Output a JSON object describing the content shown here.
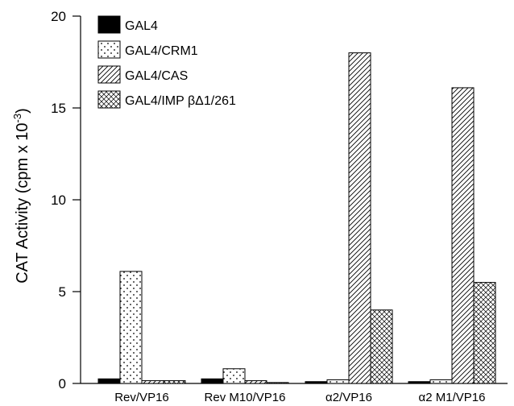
{
  "chart_data": {
    "type": "bar",
    "ylabel_main": "CAT Activity (cpm x 10",
    "ylabel_exp": "-3",
    "ylabel_close": ")",
    "ylim": [
      0,
      20
    ],
    "yticks": [
      0,
      5,
      10,
      15,
      20
    ],
    "grid": false,
    "legend_position": "top-left",
    "categories": [
      "Rev/VP16",
      "Rev M10/VP16",
      "α2/VP16",
      "α2 M1/VP16"
    ],
    "series": [
      {
        "name": "GAL4",
        "pattern": "solid",
        "values": [
          0.25,
          0.25,
          0.1,
          0.1
        ]
      },
      {
        "name": "GAL4/CRM1",
        "pattern": "dots",
        "values": [
          6.1,
          0.8,
          0.2,
          0.2
        ]
      },
      {
        "name": "GAL4/CAS",
        "pattern": "diagonal",
        "values": [
          0.15,
          0.15,
          18.0,
          16.1
        ]
      },
      {
        "name": "GAL4/IMP βΔ1/261",
        "pattern": "crosshatch",
        "values": [
          0.15,
          0.05,
          4.0,
          5.5
        ]
      }
    ]
  }
}
